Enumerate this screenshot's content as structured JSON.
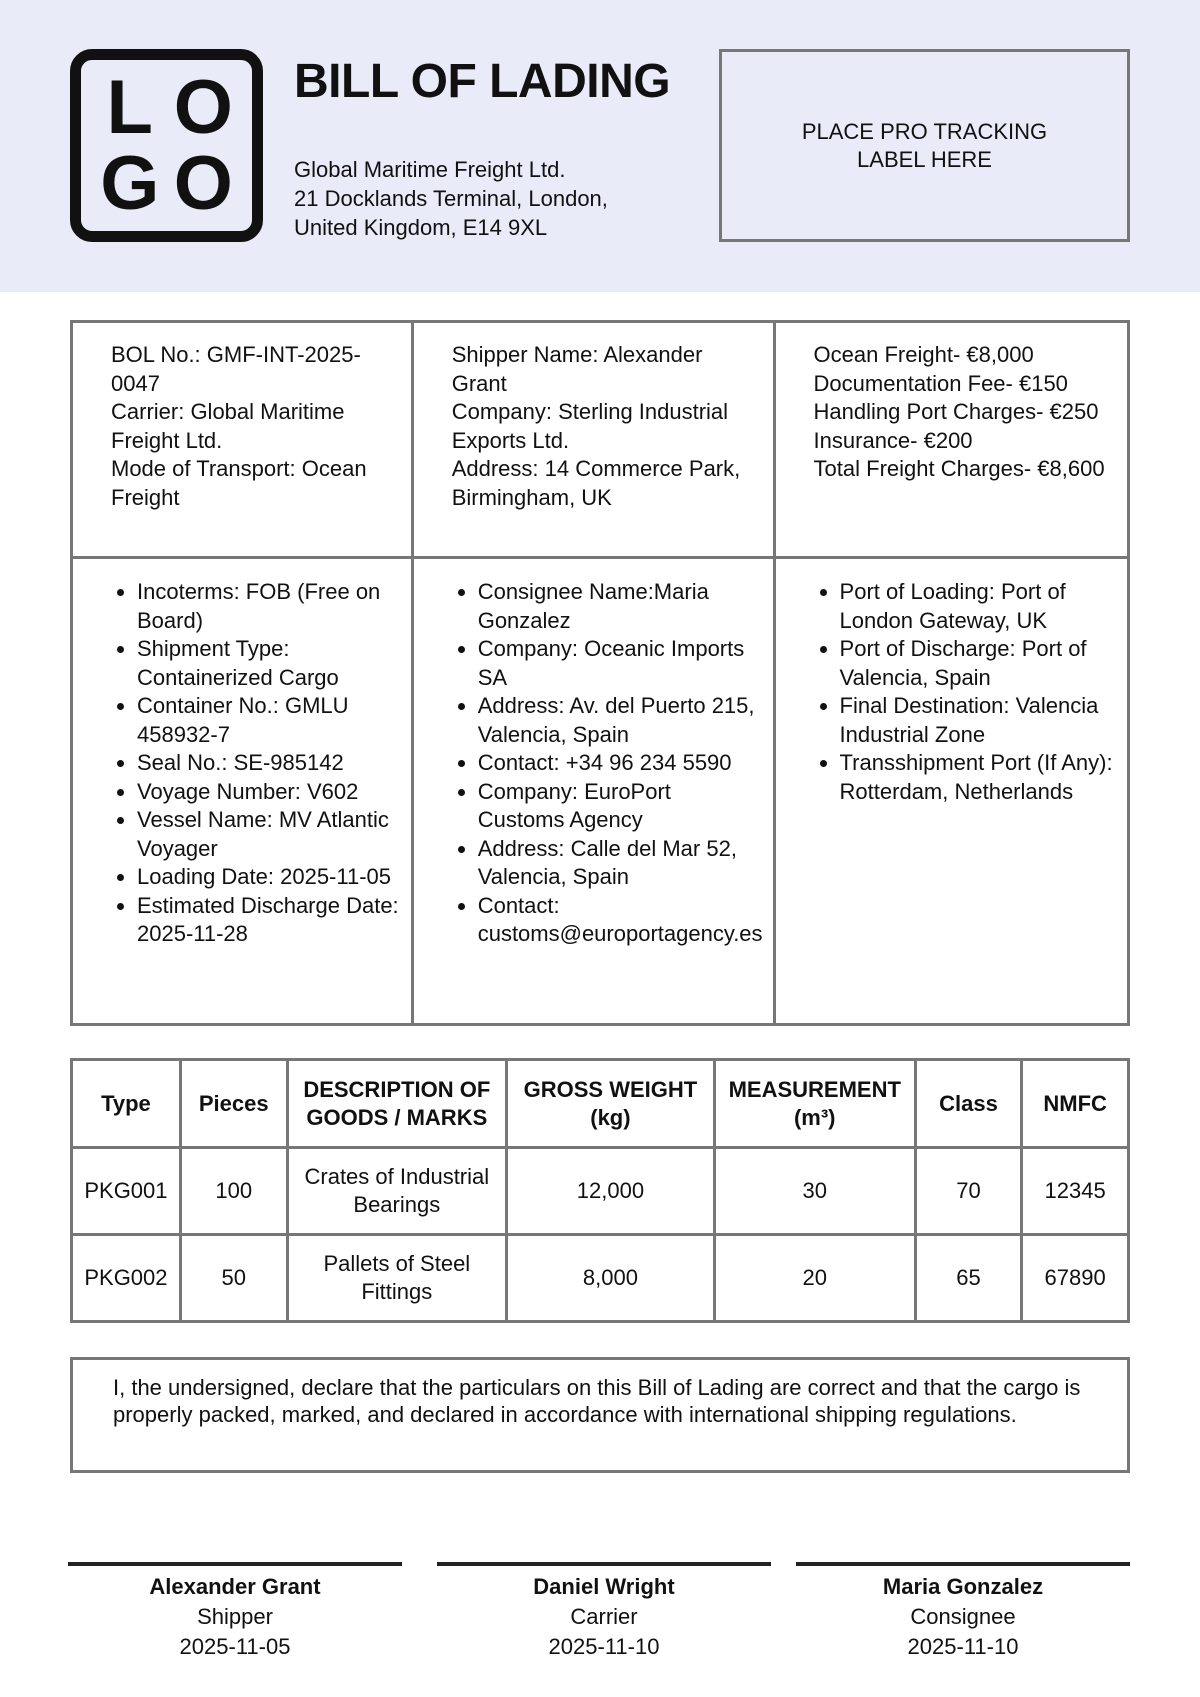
{
  "header": {
    "logo_text": "LOGO",
    "logo_letters": [
      "L",
      "O",
      "G",
      "O"
    ],
    "title": "BILL OF LADING",
    "company_lines": [
      "Global Maritime Freight Ltd.",
      "21 Docklands Terminal, London,",
      "United Kingdom, E14 9XL"
    ],
    "tracking_lines": [
      "PLACE PRO TRACKING",
      "LABEL HERE"
    ]
  },
  "info": {
    "col1": [
      "BOL No.: GMF-INT-2025-0047",
      "Carrier: Global Maritime Freight Ltd.",
      "Mode of Transport: Ocean Freight"
    ],
    "col2": [
      "Shipper Name: Alexander Grant",
      "Company: Sterling Industrial Exports Ltd.",
      "Address: 14 Commerce Park, Birmingham, UK"
    ],
    "col3": [
      "Ocean Freight- €8,000",
      "Documentation Fee- €150",
      "Handling Port Charges- €250",
      "Insurance- €200",
      "Total Freight Charges- €8,600"
    ],
    "list1": [
      "Incoterms: FOB (Free on Board)",
      "Shipment Type: Containerized Cargo",
      "Container No.: GMLU 458932-7",
      "Seal No.: SE-985142",
      "Voyage Number: V602",
      "Vessel Name: MV Atlantic Voyager",
      "Loading Date: 2025-11-05",
      "Estimated Discharge Date: 2025-11-28"
    ],
    "list2": [
      "Consignee Name:Maria Gonzalez",
      "Company: Oceanic Imports SA",
      "Address: Av. del Puerto 215, Valencia, Spain",
      "Contact: +34 96 234 5590",
      "Company: EuroPort Customs Agency",
      "Address: Calle del Mar 52, Valencia, Spain",
      "Contact: customs@europortagency.es"
    ],
    "list3": [
      "Port of Loading: Port of London Gateway, UK",
      "Port of Discharge: Port of Valencia, Spain",
      "Final Destination: Valencia Industrial Zone",
      "Transshipment Port (If Any): Rotterdam, Netherlands"
    ]
  },
  "goods": {
    "headers": [
      "Type",
      "Pieces",
      "DESCRIPTION OF GOODS / MARKS",
      "GROSS WEIGHT (kg)",
      "MEASUREMENT (m³)",
      "Class",
      "NMFC"
    ],
    "rows": [
      [
        "PKG001",
        "100",
        "Crates of Industrial Bearings",
        "12,000",
        "30",
        "70",
        "12345"
      ],
      [
        "PKG002",
        "50",
        "Pallets of Steel Fittings",
        "8,000",
        "20",
        "65",
        "67890"
      ]
    ]
  },
  "declaration": "I, the undersigned, declare that the particulars on this Bill of Lading are correct and that the cargo is properly packed, marked, and declared in accordance with international shipping regulations.",
  "signatures": [
    {
      "name": "Alexander Grant",
      "role": "Shipper",
      "date": "2025-11-05"
    },
    {
      "name": "Daniel Wright",
      "role": "Carrier",
      "date": "2025-11-10"
    },
    {
      "name": "Maria Gonzalez",
      "role": "Consignee",
      "date": "2025-11-10"
    }
  ]
}
